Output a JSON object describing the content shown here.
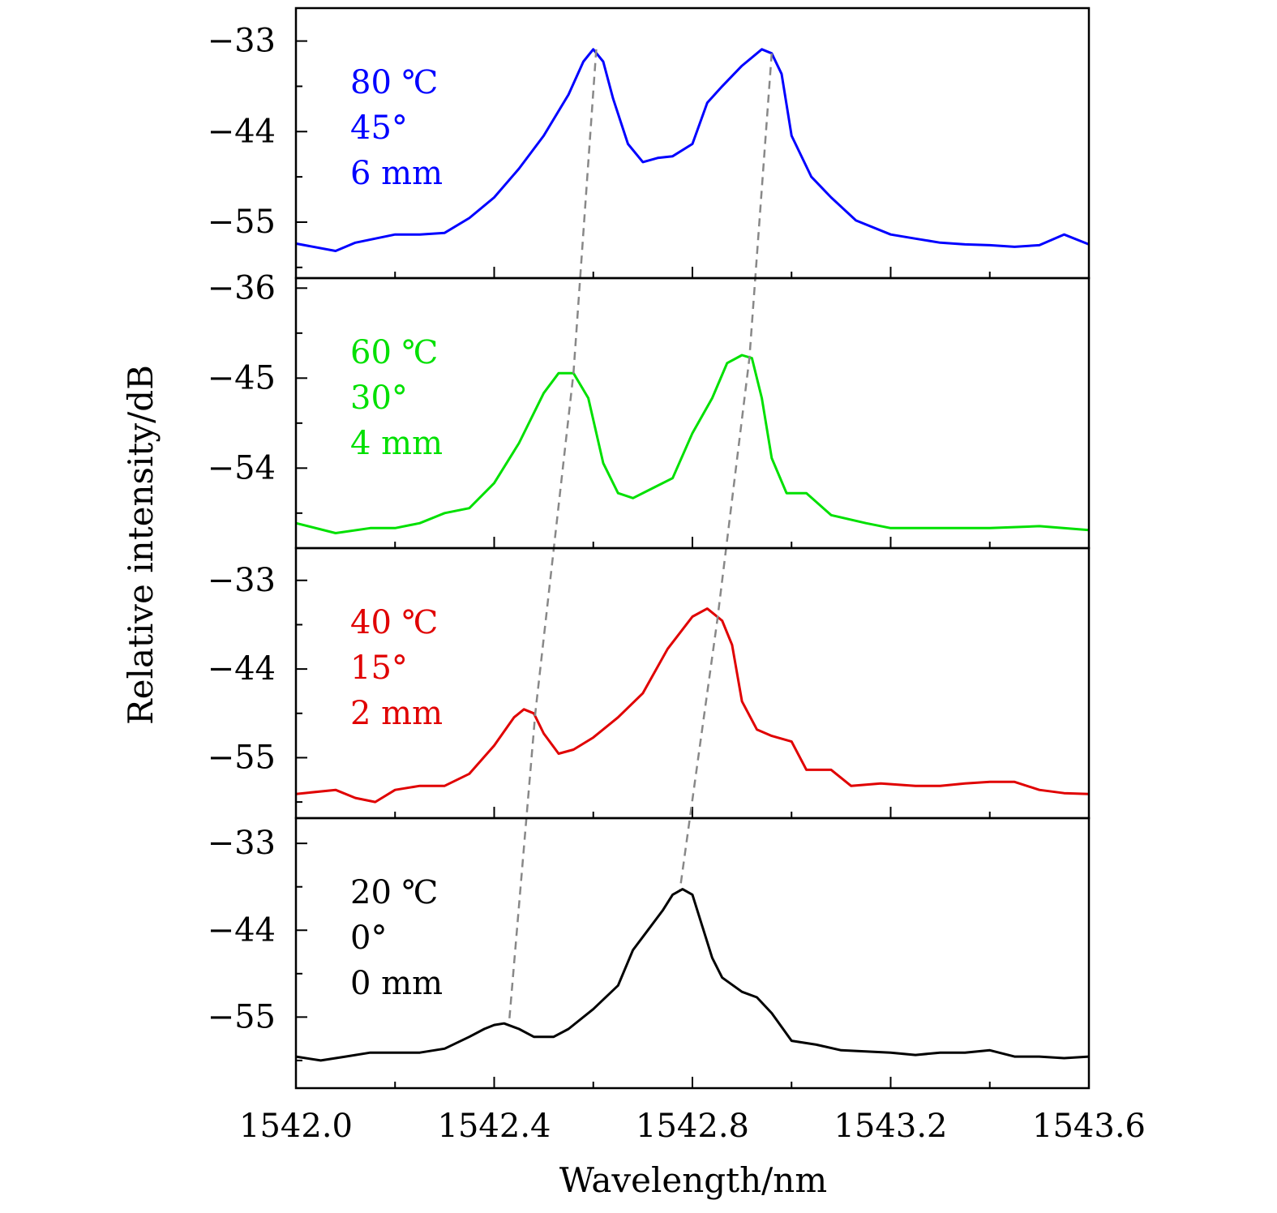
{
  "chart_data": {
    "type": "line",
    "xlabel": "Wavelength/nm",
    "ylabel": "Relative intensity/dB",
    "xlim": [
      1542.0,
      1543.6
    ],
    "x_ticks": [
      "1542.0",
      "1542.4",
      "1542.8",
      "1543.2",
      "1543.6"
    ],
    "x_tick_values": [
      1542.0,
      1542.4,
      1542.8,
      1543.2,
      1543.6
    ],
    "panels": [
      {
        "color": "#0000ff",
        "ylim": [
          -61.8,
          -29.0
        ],
        "y_ticks": [
          "−33",
          "−44",
          "−55"
        ],
        "y_tick_values": [
          -33,
          -44,
          -55
        ],
        "annotations": [
          "80 ℃",
          "45°",
          "6 mm"
        ],
        "x": [
          1542.0,
          1542.08,
          1542.12,
          1542.2,
          1542.25,
          1542.3,
          1542.35,
          1542.4,
          1542.45,
          1542.5,
          1542.55,
          1542.58,
          1542.6,
          1542.62,
          1542.64,
          1542.67,
          1542.7,
          1542.73,
          1542.76,
          1542.8,
          1542.83,
          1542.86,
          1542.9,
          1542.94,
          1542.96,
          1542.98,
          1543.0,
          1543.04,
          1543.08,
          1543.13,
          1543.2,
          1543.25,
          1543.3,
          1543.35,
          1543.4,
          1543.45,
          1543.5,
          1543.55,
          1543.6
        ],
        "y": [
          -57.6,
          -58.5,
          -57.5,
          -56.5,
          -56.5,
          -56.3,
          -54.5,
          -52.0,
          -48.5,
          -44.5,
          -39.5,
          -35.5,
          -34.0,
          -35.5,
          -40.0,
          -45.5,
          -47.7,
          -47.2,
          -47.0,
          -45.5,
          -40.5,
          -38.5,
          -36.0,
          -34.0,
          -34.5,
          -37.0,
          -44.5,
          -49.5,
          -52.0,
          -54.8,
          -56.5,
          -57.0,
          -57.5,
          -57.7,
          -57.8,
          -58.0,
          -57.8,
          -56.5,
          -57.7
        ]
      },
      {
        "color": "#00e000",
        "ylim": [
          -62.0,
          -35.0
        ],
        "y_ticks": [
          "−36",
          "−45",
          "−54"
        ],
        "y_tick_values": [
          -36,
          -45,
          -54
        ],
        "annotations": [
          "60 ℃",
          "30°",
          "4 mm"
        ],
        "x": [
          1542.0,
          1542.08,
          1542.15,
          1542.2,
          1542.25,
          1542.3,
          1542.35,
          1542.4,
          1542.45,
          1542.5,
          1542.53,
          1542.56,
          1542.59,
          1542.62,
          1542.65,
          1542.68,
          1542.72,
          1542.76,
          1542.8,
          1542.84,
          1542.87,
          1542.9,
          1542.92,
          1542.94,
          1542.96,
          1542.99,
          1543.03,
          1543.08,
          1543.15,
          1543.2,
          1543.3,
          1543.4,
          1543.5,
          1543.6
        ],
        "y": [
          -59.5,
          -60.5,
          -60.0,
          -60.0,
          -59.5,
          -58.5,
          -58.0,
          -55.5,
          -51.5,
          -46.5,
          -44.5,
          -44.5,
          -47.0,
          -53.5,
          -56.5,
          -57.0,
          -56.0,
          -55.0,
          -50.5,
          -47.0,
          -43.5,
          -42.7,
          -43.0,
          -47.0,
          -53.0,
          -56.5,
          -56.5,
          -58.7,
          -59.5,
          -60.0,
          -60.0,
          -60.0,
          -59.8,
          -60.2
        ]
      },
      {
        "color": "#e00000",
        "ylim": [
          -62.5,
          -29.0
        ],
        "y_ticks": [
          "−33",
          "−44",
          "−55"
        ],
        "y_tick_values": [
          -33,
          -44,
          -55
        ],
        "annotations": [
          "40 ℃",
          "15°",
          "2 mm"
        ],
        "x": [
          1542.0,
          1542.08,
          1542.12,
          1542.16,
          1542.2,
          1542.25,
          1542.3,
          1542.35,
          1542.4,
          1542.44,
          1542.46,
          1542.48,
          1542.5,
          1542.53,
          1542.56,
          1542.6,
          1542.65,
          1542.7,
          1542.75,
          1542.8,
          1542.83,
          1542.86,
          1542.88,
          1542.9,
          1542.93,
          1542.96,
          1543.0,
          1543.03,
          1543.08,
          1543.12,
          1543.18,
          1543.25,
          1543.3,
          1543.35,
          1543.4,
          1543.45,
          1543.5,
          1543.55,
          1543.6
        ],
        "y": [
          -59.5,
          -59.0,
          -60.0,
          -60.5,
          -59.0,
          -58.5,
          -58.5,
          -57.0,
          -53.5,
          -50.0,
          -49.0,
          -49.5,
          -52.0,
          -54.5,
          -54.0,
          -52.5,
          -50.0,
          -47.0,
          -41.5,
          -37.5,
          -36.5,
          -38.0,
          -41.0,
          -48.0,
          -51.5,
          -52.3,
          -53.0,
          -56.5,
          -56.5,
          -58.5,
          -58.2,
          -58.5,
          -58.5,
          -58.2,
          -58.0,
          -58.0,
          -59.0,
          -59.4,
          -59.5
        ]
      },
      {
        "color": "#000000",
        "ylim": [
          -64.0,
          -29.8
        ],
        "y_ticks": [
          "−33",
          "−44",
          "−55"
        ],
        "y_tick_values": [
          -33,
          -44,
          -55
        ],
        "annotations": [
          "20 ℃",
          "0°",
          "0 mm"
        ],
        "x": [
          1542.0,
          1542.05,
          1542.1,
          1542.15,
          1542.2,
          1542.25,
          1542.3,
          1542.35,
          1542.38,
          1542.4,
          1542.42,
          1542.45,
          1542.48,
          1542.52,
          1542.55,
          1542.6,
          1542.65,
          1542.68,
          1542.71,
          1542.74,
          1542.76,
          1542.78,
          1542.8,
          1542.82,
          1542.84,
          1542.86,
          1542.9,
          1542.93,
          1542.96,
          1543.0,
          1543.05,
          1543.1,
          1543.2,
          1543.25,
          1543.3,
          1543.35,
          1543.4,
          1543.45,
          1543.5,
          1543.55,
          1543.6
        ],
        "y": [
          -60.0,
          -60.5,
          -60.0,
          -59.5,
          -59.5,
          -59.5,
          -59.0,
          -57.5,
          -56.5,
          -56.0,
          -55.8,
          -56.5,
          -57.5,
          -57.5,
          -56.5,
          -54.0,
          -51.0,
          -46.5,
          -44.0,
          -41.5,
          -39.5,
          -38.8,
          -39.5,
          -43.5,
          -47.5,
          -50.0,
          -51.8,
          -52.5,
          -54.5,
          -58.0,
          -58.5,
          -59.2,
          -59.5,
          -59.8,
          -59.5,
          -59.5,
          -59.2,
          -60.0,
          -60.0,
          -60.2,
          -60.0
        ]
      }
    ],
    "guide_lines": {
      "color": "#888888",
      "style": "dashed",
      "left_peak_x": [
        1542.606,
        1542.56,
        1542.483,
        1542.43
      ],
      "right_peak_x": [
        1542.96,
        1542.915,
        1542.85,
        1542.775
      ]
    }
  }
}
